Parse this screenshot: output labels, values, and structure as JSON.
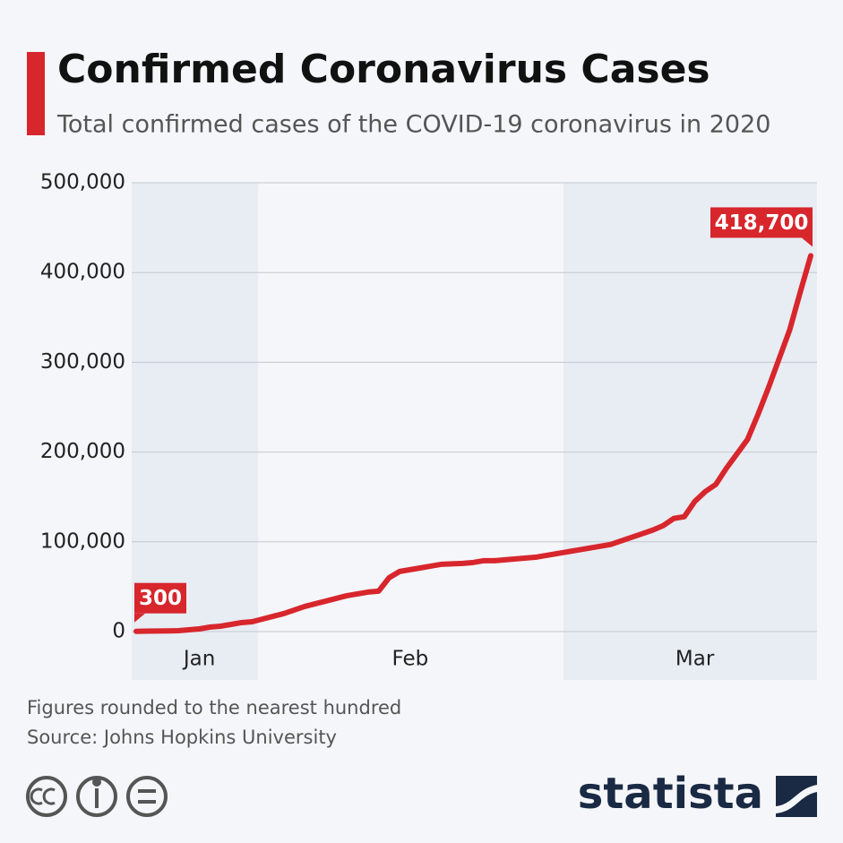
{
  "chart_data": {
    "type": "line",
    "title": "Confirmed Coronavirus Cases",
    "subtitle": "Total confirmed cases of the COVID-19 coronavirus in 2020",
    "note": "Figures rounded to the nearest hundred",
    "source": "Source: Johns Hopkins University",
    "brand": "statista",
    "categories": [
      null,
      null,
      null,
      null,
      null,
      null,
      "Jan",
      null,
      null,
      null,
      null,
      null,
      null,
      null,
      null,
      null,
      null,
      null,
      null,
      null,
      null,
      null,
      null,
      null,
      null,
      null,
      "Feb",
      null,
      null,
      null,
      null,
      null,
      null,
      null,
      null,
      null,
      null,
      null,
      null,
      null,
      null,
      null,
      null,
      null,
      null,
      null,
      null,
      null,
      null,
      null,
      null,
      null,
      null,
      "Mar",
      null,
      null,
      null,
      null,
      null,
      null,
      null,
      null,
      null,
      null,
      null
    ],
    "series": [
      {
        "name": "Confirmed cases",
        "color": "#d7262c",
        "values": [
          300,
          500,
          600,
          800,
          1000,
          2000,
          3000,
          5000,
          6000,
          8000,
          10000,
          11000,
          14000,
          17000,
          20000,
          24000,
          28000,
          31000,
          34000,
          37000,
          40000,
          42000,
          44000,
          45000,
          60000,
          67000,
          69000,
          71000,
          73000,
          75000,
          75500,
          76000,
          77000,
          79000,
          79000,
          80000,
          81000,
          82000,
          83000,
          85000,
          87000,
          89000,
          91000,
          93000,
          95000,
          97000,
          101000,
          105000,
          109000,
          113000,
          118000,
          126000,
          128000,
          145000,
          156000,
          164000,
          182000,
          198000,
          214000,
          242000,
          272000,
          304000,
          336000,
          378000,
          418700
        ],
        "value_labels": [
          "300",
          null,
          null,
          null,
          null,
          null,
          null,
          null,
          null,
          null,
          null,
          null,
          null,
          null,
          null,
          null,
          null,
          null,
          null,
          null,
          null,
          null,
          null,
          null,
          null,
          null,
          null,
          null,
          null,
          null,
          null,
          null,
          null,
          null,
          null,
          null,
          null,
          null,
          null,
          null,
          null,
          null,
          null,
          null,
          null,
          null,
          null,
          null,
          null,
          null,
          null,
          null,
          null,
          null,
          null,
          null,
          null,
          null,
          null,
          null,
          null,
          null,
          null,
          null,
          "418,700"
        ]
      }
    ],
    "ylim": [
      0,
      500000
    ],
    "yticks": [
      0,
      {
        "value": 100000,
        "label": "100,000"
      },
      {
        "value": 200000,
        "label": "200,000"
      },
      {
        "value": 300000,
        "label": "300,000"
      },
      {
        "value": 400000,
        "label": "400,000"
      },
      {
        "value": 500000,
        "label": "500,000"
      }
    ],
    "grid": true
  }
}
